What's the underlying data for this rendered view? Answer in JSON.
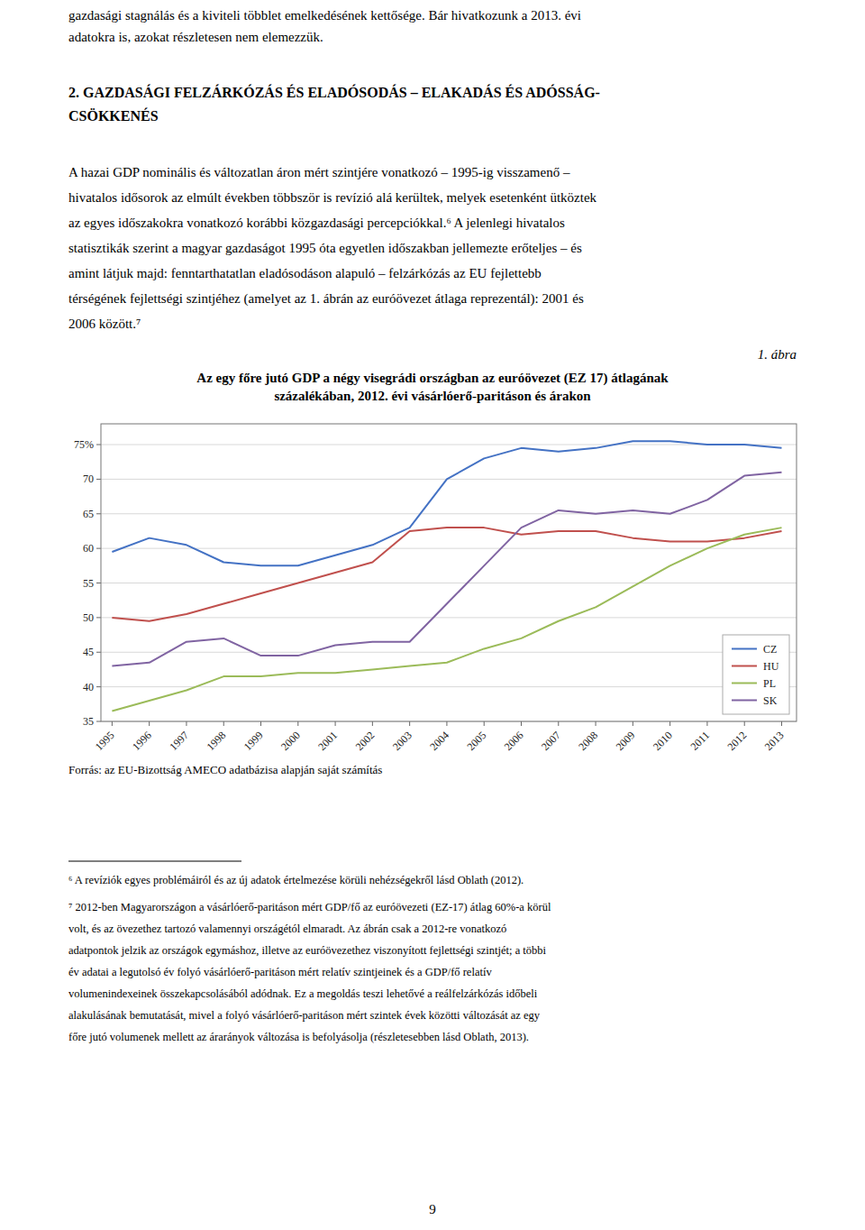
{
  "page": {
    "intro_lines": [
      "gazdasági stagnálás és a kiviteli többlet emelkedésének kettősége. Bár hivatkozunk a 2013. évi",
      "adatokra is, azokat részletesen nem elemezzük."
    ],
    "heading_lines": [
      "2. GAZDASÁGI FELZÁRKÓZÁS ÉS ELADÓSODÁS – ELAKADÁS ÉS ADÓSSÁG-",
      "CSÖKKENÉS"
    ],
    "body_lines": [
      "A hazai GDP nominális és változatlan áron mért szintjére vonatkozó – 1995-ig visszamenő –",
      "hivatalos idősorok az elmúlt években többször is revízió alá kerültek, melyek esetenként ütköztek",
      "az egyes időszakokra vonatkozó korábbi közgazdasági percepciókkal.⁶ A jelenlegi hivatalos",
      "statisztikák szerint a magyar gazdaságot 1995 óta egyetlen időszakban jellemezte erőteljes – és",
      "amint látjuk majd: fenntarthatatlan eladósodáson alapuló – felzárkózás az EU fejlettebb",
      "térségének fejlettségi szintjéhez (amelyet az 1. ábrán az euróövezet átlaga reprezentál): 2001 és",
      "2006 között.⁷"
    ],
    "footnotes": [
      [
        "⁶ A revíziók egyes problémáiról és az új adatok értelmezése körüli nehézségekről lásd Oblath (2012)."
      ],
      [
        "⁷ 2012-ben Magyarországon a vásárlóerő-paritáson mért GDP/fő az euróövezeti (EZ-17) átlag 60%-a körül",
        "volt, és az övezethez tartozó valamennyi országétól elmaradt. Az ábrán csak a 2012-re vonatkozó",
        "adatpontok jelzik az országok egymáshoz, illetve az euróövezethez viszonyított fejlettségi szintjét; a többi",
        "év adatai a legutolsó év folyó vásárlóerő-paritáson mért relatív szintjeinek és a GDP/fő relatív",
        "volumenindexeinek összekapcsolásából adódnak. Ez a megoldás teszi lehetővé a reálfelzárkózás időbeli",
        "alakulásának bemutatását, mivel a folyó vásárlóerő-paritáson mért szintek évek közötti változását az egy",
        "főre jutó volumenek mellett az árarányok változása is befolyásolja (részletesebben lásd Oblath, 2013)."
      ]
    ],
    "page_number": "9"
  },
  "chart_data": {
    "type": "line",
    "figure_label": "1. ábra",
    "title": [
      "Az egy főre jutó GDP a négy visegrádi országban az euróövezet (EZ 17) átlagának",
      "százalékában, 2012. évi vásárlóerő-paritáson és árakon"
    ],
    "source": "Forrás: az EU-Bizottság AMECO adatbázisa alapján saját számítás",
    "x": [
      1995,
      1996,
      1997,
      1998,
      1999,
      2000,
      2001,
      2002,
      2003,
      2004,
      2005,
      2006,
      2007,
      2008,
      2009,
      2010,
      2011,
      2012,
      2013
    ],
    "xlim": [
      1994.7,
      2013.4
    ],
    "xticks": [
      1995,
      1996,
      1997,
      1998,
      1999,
      2000,
      2001,
      2002,
      2003,
      2004,
      2005,
      2006,
      2007,
      2008,
      2009,
      2010,
      2011,
      2012,
      2013
    ],
    "ylim": [
      35,
      78
    ],
    "yticks": [
      35,
      40,
      45,
      50,
      55,
      60,
      65,
      70,
      {
        "value": 75,
        "label": "75%"
      }
    ],
    "grid": true,
    "legend": "lower right",
    "series": [
      {
        "name": "CZ",
        "color": "#4472C4",
        "values": [
          59.5,
          61.5,
          60.5,
          58.0,
          57.5,
          57.5,
          59.0,
          60.5,
          63.0,
          70.0,
          73.0,
          74.5,
          74.0,
          74.5,
          75.5,
          75.5,
          75.0,
          75.0,
          74.5
        ]
      },
      {
        "name": "HU",
        "color": "#C0504D",
        "values": [
          50.0,
          49.5,
          50.5,
          52.0,
          53.5,
          55.0,
          56.5,
          58.0,
          62.5,
          63.0,
          63.0,
          62.0,
          62.5,
          62.5,
          61.5,
          61.0,
          61.0,
          61.5,
          62.5
        ]
      },
      {
        "name": "PL",
        "color": "#9BBB59",
        "values": [
          36.5,
          38.0,
          39.5,
          41.5,
          41.5,
          42.0,
          42.0,
          42.5,
          43.0,
          43.5,
          45.5,
          47.0,
          49.5,
          51.5,
          54.5,
          57.5,
          60.0,
          62.0,
          63.0
        ]
      },
      {
        "name": "SK",
        "color": "#8064A2",
        "values": [
          43.0,
          43.5,
          46.5,
          47.0,
          44.5,
          44.5,
          46.0,
          46.5,
          46.5,
          52.0,
          57.5,
          63.0,
          65.5,
          65.0,
          65.5,
          65.0,
          67.0,
          70.5,
          71.0
        ]
      }
    ]
  }
}
